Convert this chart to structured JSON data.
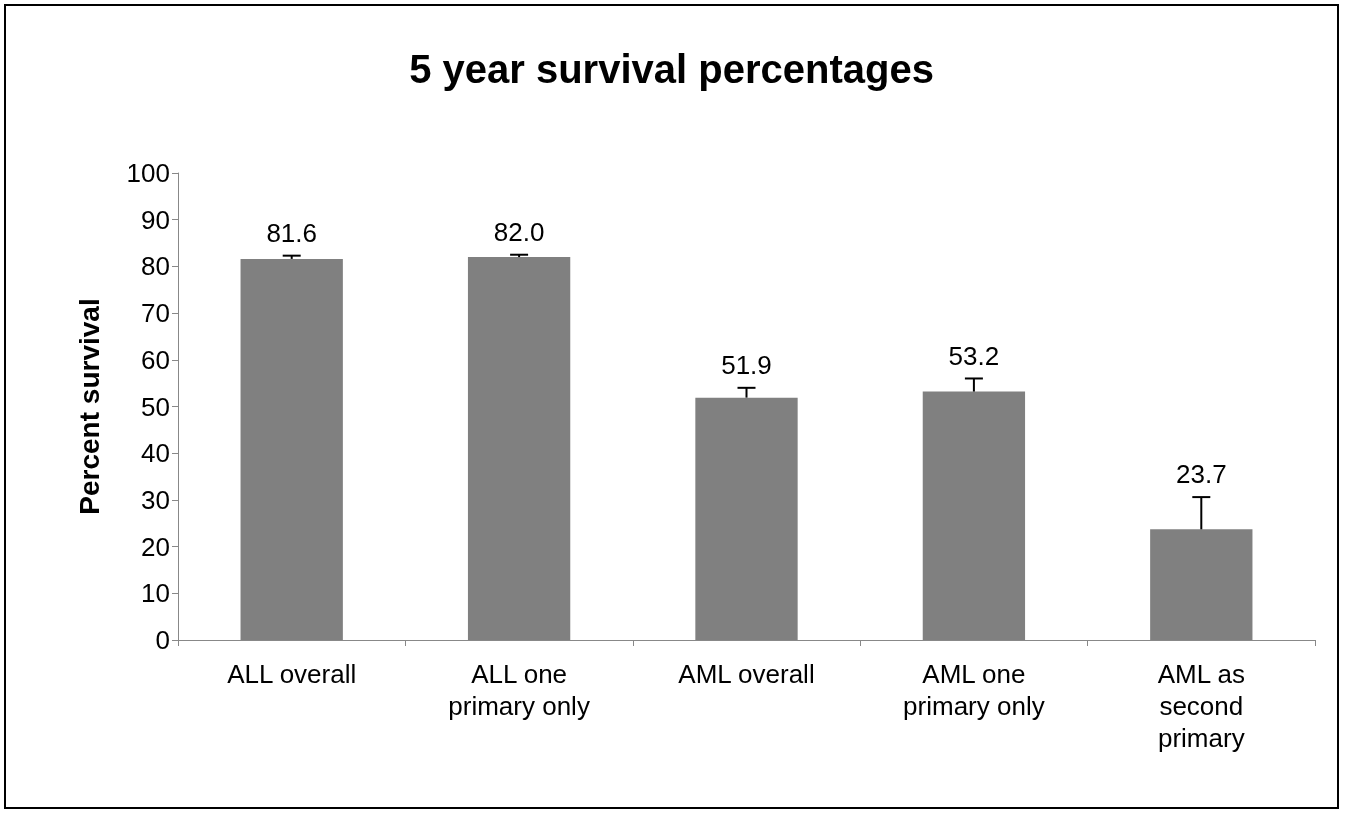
{
  "chart_data": {
    "type": "bar",
    "title": "5 year survival percentages",
    "ylabel": "Percent survival",
    "categories": [
      "ALL overall",
      "ALL one\nprimary only",
      "AML overall",
      "AML one\nprimary only",
      "AML as\nsecond\nprimary"
    ],
    "values": [
      81.6,
      82.0,
      51.9,
      53.2,
      23.7
    ],
    "errors": [
      [
        81.6,
        82.3
      ],
      [
        82.0,
        82.5
      ],
      [
        51.9,
        54.0
      ],
      [
        53.2,
        56.0
      ],
      [
        23.7,
        30.6
      ]
    ],
    "value_labels": [
      "81.6",
      "82.0",
      "51.9",
      "53.2",
      "23.7"
    ],
    "color": "#808080",
    "ylim": [
      0,
      100
    ],
    "yticks": [
      0,
      10,
      20,
      30,
      40,
      50,
      60,
      70,
      80,
      90,
      100
    ],
    "grid": false
  }
}
